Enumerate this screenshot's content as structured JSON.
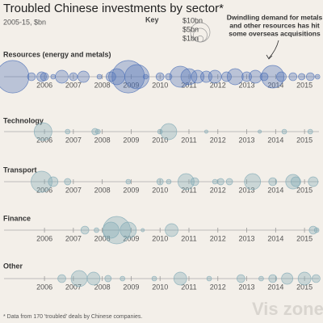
{
  "chart_data": {
    "type": "bubble-timeline",
    "title": "Troubled Chinese investments by sector*",
    "subtitle": "2005-15, $bn",
    "key_title": "Key",
    "key": [
      {
        "value": 10,
        "label": "$10bn"
      },
      {
        "value": 5,
        "label": "$5bn"
      },
      {
        "value": 1,
        "label": "$1bn"
      }
    ],
    "annotation": [
      "Dwindling demand for metals",
      "and other resources has hit",
      "some overseas acquisitions"
    ],
    "footnote": "* Data from 170 'troubled' deals by Chinese companies.",
    "watermark": "Vis zone",
    "xlim": [
      2004.6,
      2015.5
    ],
    "xticks": [
      2006,
      2007,
      2008,
      2009,
      2010,
      2011,
      2012,
      2013,
      2014,
      2015
    ],
    "series": [
      {
        "name": "Resources (energy and metals)",
        "color": "#4f72b8",
        "x": [
          2004.9,
          2005.55,
          2005.9,
          2006.0,
          2006.3,
          2006.6,
          2007.0,
          2007.35,
          2007.9,
          2008.3,
          2008.5,
          2008.9,
          2009.2,
          2009.5,
          2010.0,
          2010.3,
          2010.7,
          2011.0,
          2011.3,
          2011.6,
          2011.9,
          2012.3,
          2012.6,
          2013.0,
          2013.3,
          2013.6,
          2013.9,
          2014.2,
          2014.6,
          2014.9,
          2015.2,
          2015.45
        ],
        "values": [
          28,
          1.7,
          2.5,
          1.7,
          0.6,
          4.4,
          1.7,
          3.4,
          0.6,
          2.5,
          6.9,
          28,
          15.6,
          0.6,
          1.7,
          1.1,
          11.7,
          6.9,
          4.4,
          3.4,
          4.4,
          2.5,
          6.9,
          2.5,
          4.4,
          1.7,
          13.6,
          2.5,
          1.7,
          1.1,
          1.7,
          0.6
        ]
      },
      {
        "name": "Technology",
        "color": "#7fa9b5",
        "x": [
          2005.95,
          2006.8,
          2007.75,
          2007.85,
          2010.0,
          2010.3,
          2011.6,
          2013.45,
          2014.3,
          2015.2
        ],
        "values": [
          8.4,
          0.6,
          1.1,
          0.6,
          0.6,
          6.9,
          0.3,
          0.3,
          0.6,
          0.6
        ]
      },
      {
        "name": "Transport",
        "color": "#7fa9b5",
        "x": [
          2005.9,
          2006.3,
          2006.8,
          2008.9,
          2010.0,
          2010.3,
          2010.9,
          2011.2,
          2011.9,
          2012.1,
          2012.4,
          2013.2,
          2013.9,
          2014.6,
          2014.7,
          2015.3
        ],
        "values": [
          11.7,
          2.5,
          1.1,
          0.6,
          1.1,
          0.6,
          6.9,
          1.7,
          0.6,
          1.1,
          1.1,
          6.9,
          1.7,
          5.6,
          2.5,
          2.5
        ]
      },
      {
        "name": "Finance",
        "color": "#7fa9b5",
        "x": [
          2007.4,
          2007.8,
          2008.3,
          2008.5,
          2008.9,
          2009.4,
          2010.4,
          2015.3,
          2015.42
        ],
        "values": [
          1.7,
          0.6,
          6.9,
          20,
          6.9,
          0.3,
          4.4,
          1.7,
          0.6
        ]
      },
      {
        "name": "Other",
        "color": "#7fa9b5",
        "x": [
          2006.6,
          2007.2,
          2007.7,
          2008.2,
          2008.7,
          2009.8,
          2010.7,
          2011.7,
          2012.8,
          2013.5,
          2013.9,
          2014.4,
          2015.0,
          2015.4
        ],
        "values": [
          1.7,
          6.9,
          4.4,
          1.1,
          0.6,
          0.6,
          4.4,
          0.6,
          1.7,
          0.6,
          1.7,
          3.4,
          4.4,
          1.7
        ]
      }
    ]
  }
}
